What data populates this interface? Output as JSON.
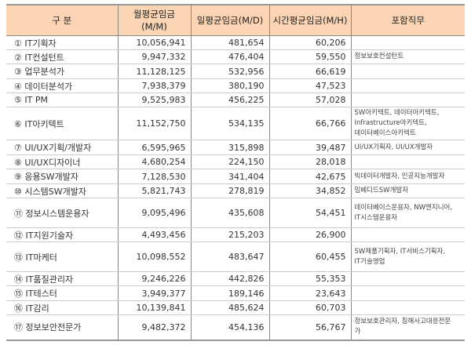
{
  "headers": [
    "구 분",
    "월평균임금(M/M)",
    "일평균임금(M/D)",
    "시간평균임금(M/H)",
    "포함직무"
  ],
  "header_lines": {
    "monthly": [
      "월평균임금",
      "(M/M)"
    ]
  },
  "rows": [
    {
      "name": "① IT기획자",
      "monthly": "10,056,941",
      "daily": "481,654",
      "hourly": "60,206",
      "included": []
    },
    {
      "name": "② IT컨설턴트",
      "monthly": "9,947,332",
      "daily": "476,404",
      "hourly": "59,550",
      "included": [
        "정보보호컨설턴트"
      ]
    },
    {
      "name": "③ 업무분석가",
      "monthly": "11,128,125",
      "daily": "532,956",
      "hourly": "66,619",
      "included": []
    },
    {
      "name": "④ 데이터분석가",
      "monthly": "7,938,379",
      "daily": "380,190",
      "hourly": "47,523",
      "included": []
    },
    {
      "name": "⑤ IT PM",
      "monthly": "9,525,983",
      "daily": "456,225",
      "hourly": "57,028",
      "included": []
    },
    {
      "name": "⑥ IT아키텍트",
      "monthly": "11,152,750",
      "daily": "534,135",
      "hourly": "66,766",
      "included": [
        "SW아키텍트, 데이터아키텍트,",
        "Infrastructure아키텍트,",
        "데이터베이스아키텍트"
      ]
    },
    {
      "name": "⑦ UI/UX기획/개발자",
      "monthly": "6,595,965",
      "daily": "315,898",
      "hourly": "39,487",
      "included": [
        "UI/UX기획자, UI/UX개발자"
      ]
    },
    {
      "name": "⑧ UI/UX디자이너",
      "monthly": "4,680,254",
      "daily": "224,150",
      "hourly": "28,018",
      "included": []
    },
    {
      "name": "⑨ 응용SW개발자",
      "monthly": "7,128,530",
      "daily": "341,404",
      "hourly": "42,675",
      "included": [
        "빅데이터개발자, 인공지능개발자"
      ]
    },
    {
      "name": "⑩ 시스템SW개발자",
      "monthly": "5,821,743",
      "daily": "278,819",
      "hourly": "34,852",
      "included": [
        "임베디드SW개발자"
      ]
    },
    {
      "name": "⑪ 정보시스템운용자",
      "monthly": "9,095,496",
      "daily": "435,608",
      "hourly": "54,451",
      "included": [
        "데이터베이스운용자, NW엔지니어,",
        "IT시스템운용자"
      ]
    },
    {
      "name": "⑫ IT지원기술자",
      "monthly": "4,493,456",
      "daily": "215,203",
      "hourly": "26,900",
      "included": []
    },
    {
      "name": "⑬ IT마케터",
      "monthly": "10,098,552",
      "daily": "483,647",
      "hourly": "60,455",
      "included": [
        "SW제품기획자, IT서비스기획자,",
        "IT기술영업"
      ]
    },
    {
      "name": "⑭ IT품질관리자",
      "monthly": "9,246,226",
      "daily": "442,826",
      "hourly": "55,353",
      "included": []
    },
    {
      "name": "⑮ IT테스터",
      "monthly": "3,949,377",
      "daily": "189,146",
      "hourly": "23,643",
      "included": []
    },
    {
      "name": "⑯ IT감리",
      "monthly": "10,139,841",
      "daily": "485,624",
      "hourly": "60,703",
      "included": []
    },
    {
      "name": "⑰ 정보보안전문가",
      "monthly": "9,482,372",
      "daily": "454,136",
      "hourly": "56,767",
      "included": [
        "정보보호관리자, 침해사고대응전문",
        "가"
      ]
    }
  ],
  "colors": {
    "header_bg": "#fbd4b4"
  }
}
